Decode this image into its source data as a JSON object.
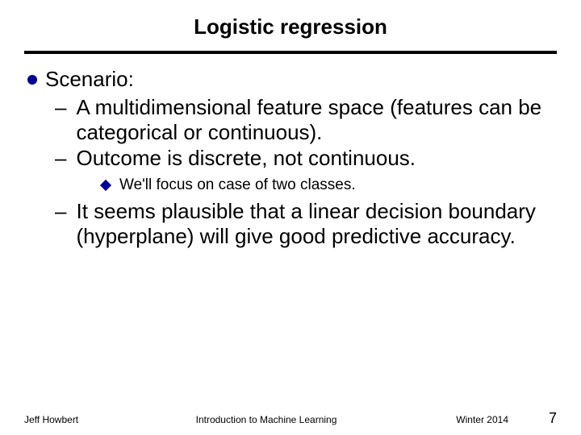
{
  "title": "Logistic regression",
  "scenario": {
    "label": "Scenario:",
    "items": [
      "A multidimensional feature space (features can be categorical or continuous).",
      "Outcome is discrete, not continuous."
    ],
    "subnote": "We'll focus on case of two classes.",
    "last": "It seems plausible that a linear decision boundary (hyperplane) will give good predictive accuracy."
  },
  "footer": {
    "author": "Jeff Howbert",
    "course": "Introduction to Machine Learning",
    "term": "Winter 2014",
    "page": "7"
  },
  "colors": {
    "bullet": "#000099",
    "text": "#000000",
    "rule": "#000000",
    "background": "#ffffff"
  }
}
